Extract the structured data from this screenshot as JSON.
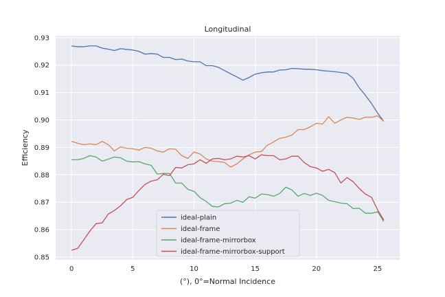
{
  "chart_data": {
    "type": "line",
    "title": "Longitudinal",
    "xlabel": "(°), 0°=Normal Incidence",
    "ylabel": "Efficiency",
    "xlim": [
      -1.3,
      26.8
    ],
    "ylim": [
      0.849,
      0.9307
    ],
    "xticks": [
      0,
      5,
      10,
      15,
      20,
      25
    ],
    "yticks": [
      0.85,
      0.86,
      0.87,
      0.88,
      0.89,
      0.9,
      0.91,
      0.92,
      0.93
    ],
    "ytick_labels": [
      "0.85",
      "0.86",
      "0.87",
      "0.88",
      "0.89",
      "0.90",
      "0.91",
      "0.92",
      "0.93"
    ],
    "grid": true,
    "legend_position": "lower center",
    "x": [
      0,
      0.5,
      1,
      1.5,
      2,
      2.5,
      3,
      3.5,
      4,
      4.5,
      5,
      5.5,
      6,
      6.5,
      7,
      7.5,
      8,
      8.5,
      9,
      9.5,
      10,
      10.5,
      11,
      11.5,
      12,
      12.5,
      13,
      13.5,
      14,
      14.5,
      15,
      15.5,
      16,
      16.5,
      17,
      17.5,
      18,
      18.5,
      19,
      19.5,
      20,
      20.5,
      21,
      21.5,
      22,
      22.5,
      23,
      23.5,
      24,
      24.5,
      25,
      25.5
    ],
    "series": [
      {
        "name": "ideal-plain",
        "color": "#4c72b0",
        "values": [
          0.927,
          0.9267,
          0.9267,
          0.927,
          0.927,
          0.9262,
          0.9258,
          0.9253,
          0.926,
          0.9257,
          0.9255,
          0.925,
          0.924,
          0.9242,
          0.924,
          0.9228,
          0.9228,
          0.922,
          0.9222,
          0.9215,
          0.9212,
          0.9212,
          0.9198,
          0.9198,
          0.9192,
          0.918,
          0.9168,
          0.9157,
          0.9145,
          0.9155,
          0.9167,
          0.9172,
          0.9175,
          0.9175,
          0.9182,
          0.9183,
          0.9188,
          0.9187,
          0.9185,
          0.9185,
          0.9183,
          0.918,
          0.9178,
          0.9176,
          0.9173,
          0.917,
          0.9152,
          0.9117,
          0.909,
          0.906,
          0.9025,
          0.8995
        ]
      },
      {
        "name": "ideal-frame",
        "color": "#dd8452",
        "values": [
          0.8922,
          0.8915,
          0.891,
          0.8913,
          0.891,
          0.8922,
          0.891,
          0.8887,
          0.8902,
          0.8897,
          0.8895,
          0.889,
          0.89,
          0.8897,
          0.8887,
          0.8883,
          0.8895,
          0.8893,
          0.887,
          0.886,
          0.8883,
          0.8876,
          0.8858,
          0.885,
          0.8848,
          0.8845,
          0.8828,
          0.884,
          0.8858,
          0.8873,
          0.8883,
          0.8885,
          0.8908,
          0.892,
          0.8933,
          0.8937,
          0.8945,
          0.8965,
          0.8965,
          0.8975,
          0.8988,
          0.8985,
          0.9012,
          0.8988,
          0.9,
          0.901,
          0.9007,
          0.9002,
          0.901,
          0.901,
          0.9015,
          0.8995
        ]
      },
      {
        "name": "ideal-frame-mirrorbox",
        "color": "#55a868",
        "values": [
          0.8855,
          0.8855,
          0.886,
          0.887,
          0.8865,
          0.885,
          0.8857,
          0.8865,
          0.8862,
          0.885,
          0.8847,
          0.8848,
          0.884,
          0.8835,
          0.8803,
          0.8805,
          0.8805,
          0.877,
          0.877,
          0.8747,
          0.874,
          0.8717,
          0.8703,
          0.8685,
          0.8683,
          0.8695,
          0.8697,
          0.8707,
          0.87,
          0.872,
          0.8715,
          0.873,
          0.8728,
          0.8722,
          0.8732,
          0.8755,
          0.8745,
          0.8722,
          0.8732,
          0.8725,
          0.8733,
          0.8725,
          0.8707,
          0.8702,
          0.8697,
          0.8695,
          0.8677,
          0.8678,
          0.866,
          0.866,
          0.8665,
          0.863
        ]
      },
      {
        "name": "ideal-frame-mirrorbox-support",
        "color": "#c44e52",
        "values": [
          0.8525,
          0.8532,
          0.8563,
          0.8595,
          0.8622,
          0.8625,
          0.8657,
          0.867,
          0.8687,
          0.871,
          0.8718,
          0.8743,
          0.8765,
          0.8777,
          0.8782,
          0.8802,
          0.8797,
          0.8827,
          0.8825,
          0.8837,
          0.884,
          0.8855,
          0.8842,
          0.8858,
          0.886,
          0.8855,
          0.8858,
          0.8868,
          0.8865,
          0.887,
          0.8858,
          0.8873,
          0.887,
          0.887,
          0.8855,
          0.8858,
          0.8868,
          0.8868,
          0.8845,
          0.883,
          0.8825,
          0.8813,
          0.882,
          0.8808,
          0.877,
          0.879,
          0.8775,
          0.875,
          0.873,
          0.8718,
          0.8672,
          0.8635
        ]
      }
    ]
  }
}
